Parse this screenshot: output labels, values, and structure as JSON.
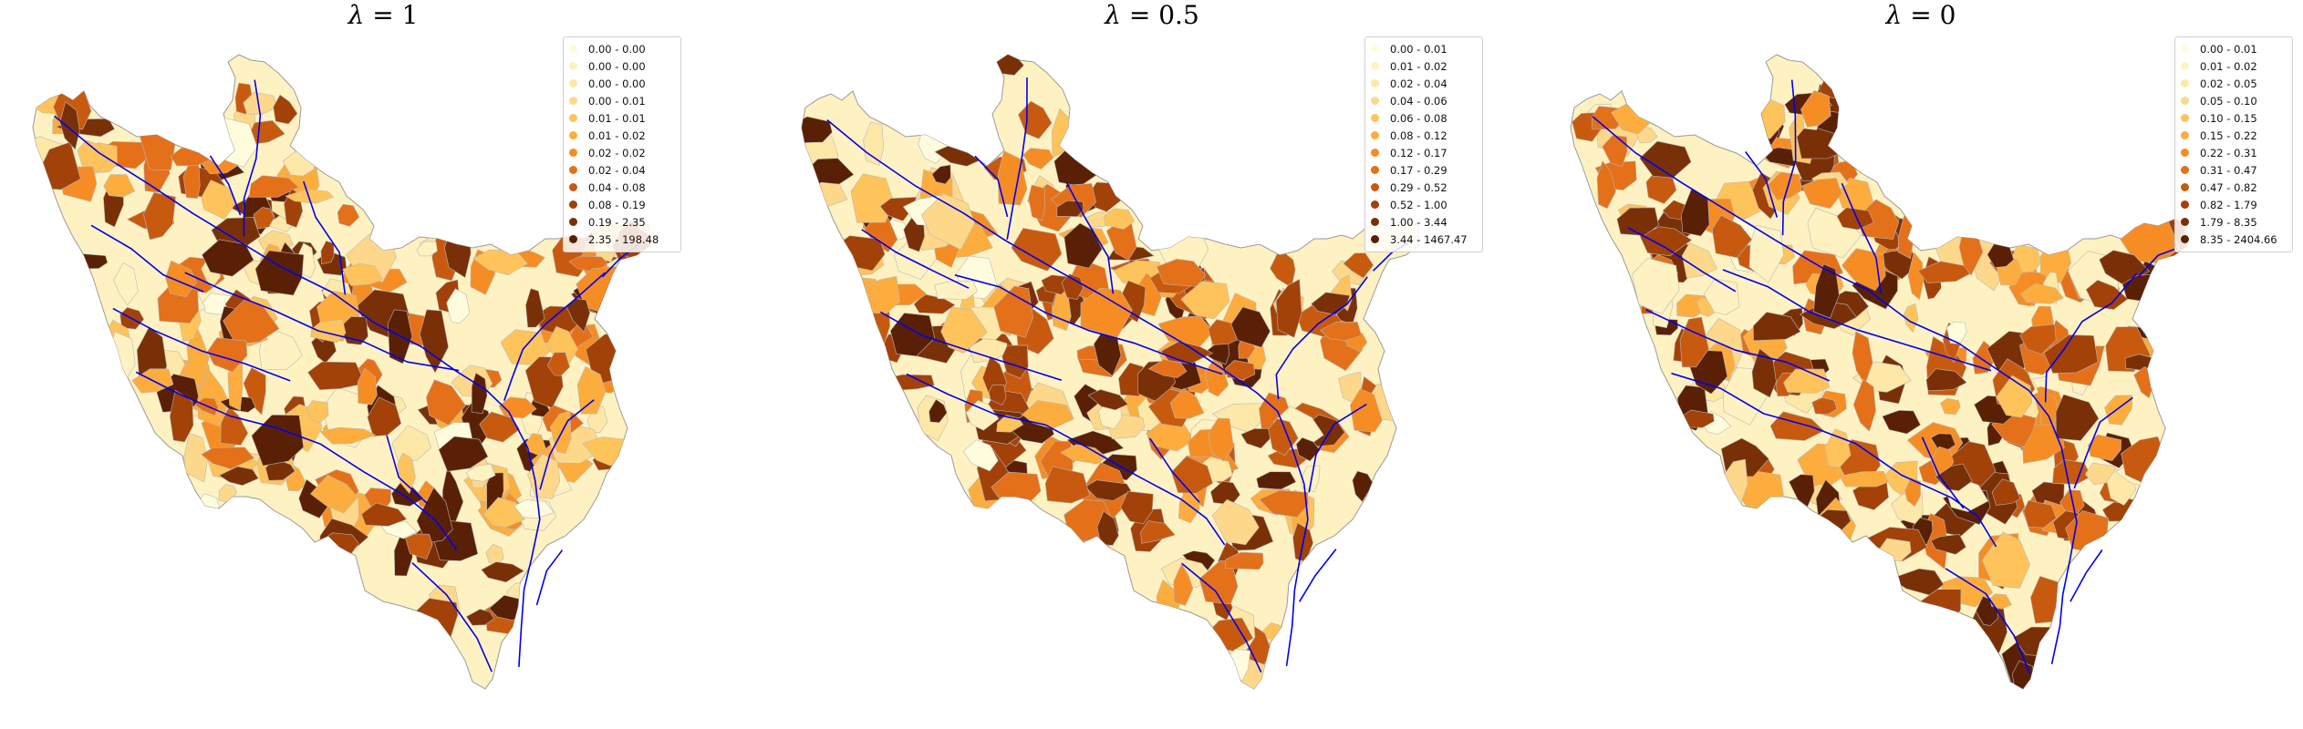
{
  "figure": {
    "palette": [
      "#fffcde",
      "#fff2c2",
      "#fee8a8",
      "#fed88a",
      "#fec45b",
      "#fdad3d",
      "#f68d24",
      "#e4701a",
      "#c85a10",
      "#a24108",
      "#7a3006",
      "#5a2005"
    ],
    "river_color": "#0000ee",
    "panels": [
      {
        "title_var": "λ",
        "title_rest": " = 1",
        "legend": [
          "0.00 - 0.00",
          "0.00 - 0.00",
          "0.00 - 0.00",
          "0.00 - 0.01",
          "0.01 - 0.01",
          "0.01 - 0.02",
          "0.02 - 0.02",
          "0.02 - 0.04",
          "0.04 - 0.08",
          "0.08 - 0.19",
          "0.19 - 2.35",
          "2.35 - 198.48"
        ]
      },
      {
        "title_var": "λ",
        "title_rest": " = 0.5",
        "legend": [
          "0.00 - 0.01",
          "0.01 - 0.02",
          "0.02 - 0.04",
          "0.04 - 0.06",
          "0.06 - 0.08",
          "0.08 - 0.12",
          "0.12 - 0.17",
          "0.17 - 0.29",
          "0.29 - 0.52",
          "0.52 - 1.00",
          "1.00 - 3.44",
          "3.44 - 1467.47"
        ]
      },
      {
        "title_var": "λ",
        "title_rest": " = 0",
        "legend": [
          "0.00 - 0.01",
          "0.01 - 0.02",
          "0.02 - 0.05",
          "0.05 - 0.10",
          "0.10 - 0.15",
          "0.15 - 0.22",
          "0.22 - 0.31",
          "0.31 - 0.47",
          "0.47 - 0.82",
          "0.82 - 1.79",
          "1.79 - 8.35",
          "8.35 - 2404.66"
        ]
      }
    ]
  }
}
